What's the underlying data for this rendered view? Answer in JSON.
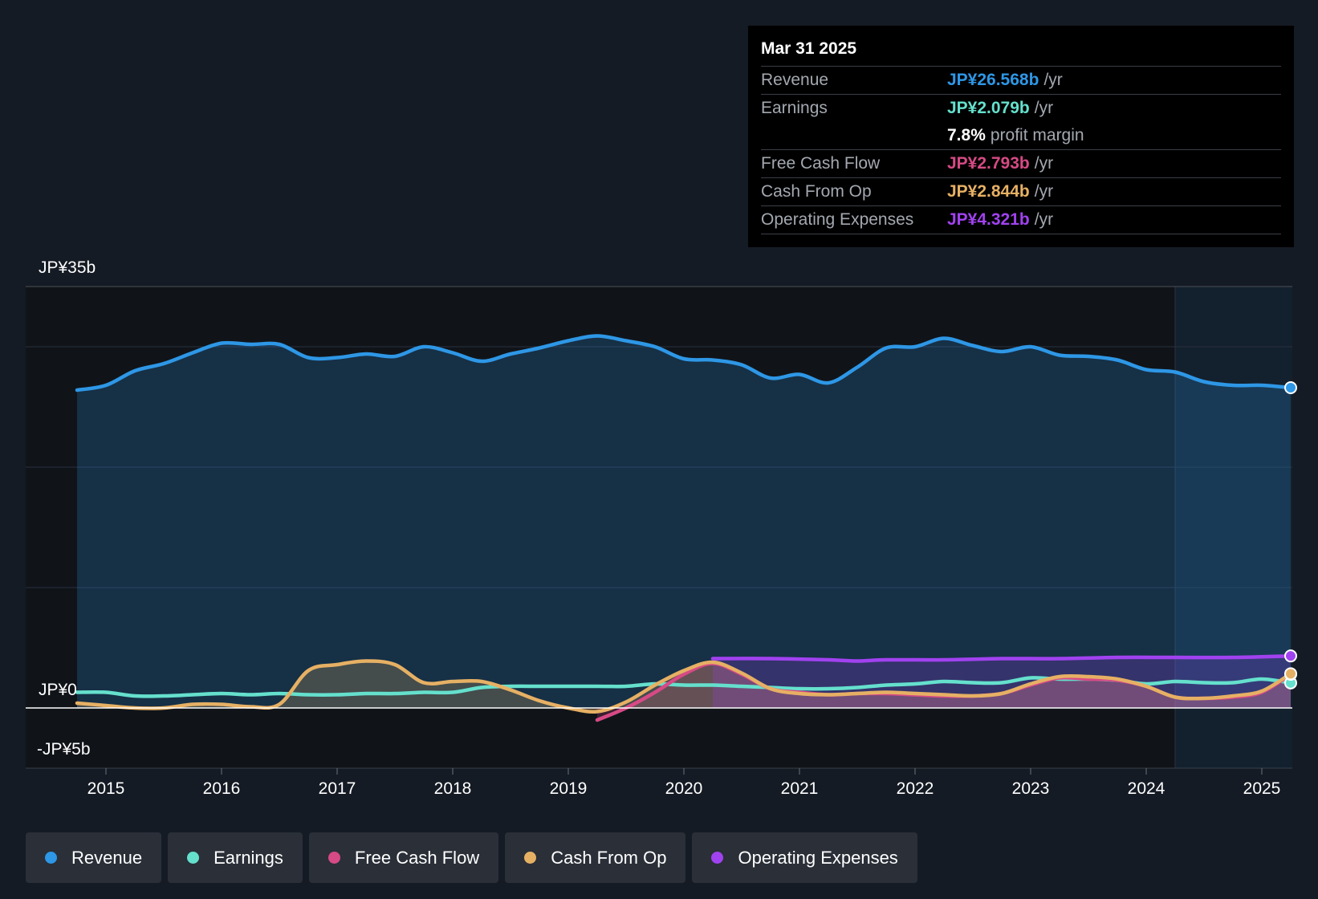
{
  "chart_data": {
    "type": "area",
    "title": "",
    "currency": "JP¥",
    "y_tick_labels": {
      "top": "JP¥35b",
      "zero": "JP¥0",
      "bottom": "-JP¥5b"
    },
    "ylim": [
      -5,
      35
    ],
    "xlim": [
      2014.7,
      2025.25
    ],
    "x_ticks": [
      2015,
      2016,
      2017,
      2018,
      2019,
      2020,
      2021,
      2022,
      2023,
      2024,
      2025
    ],
    "x_tick_labels": [
      "2015",
      "2016",
      "2017",
      "2018",
      "2019",
      "2020",
      "2021",
      "2022",
      "2023",
      "2024",
      "2025"
    ],
    "forecast_start": 2024.25,
    "series": [
      {
        "name": "Revenue",
        "color": "#2e97e6",
        "fill": true,
        "points": [
          [
            2014.75,
            26.4
          ],
          [
            2015.0,
            26.8
          ],
          [
            2015.25,
            28.0
          ],
          [
            2015.5,
            28.6
          ],
          [
            2015.75,
            29.5
          ],
          [
            2016.0,
            30.3
          ],
          [
            2016.25,
            30.2
          ],
          [
            2016.5,
            30.2
          ],
          [
            2016.75,
            29.1
          ],
          [
            2017.0,
            29.1
          ],
          [
            2017.25,
            29.4
          ],
          [
            2017.5,
            29.2
          ],
          [
            2017.75,
            30.0
          ],
          [
            2018.0,
            29.5
          ],
          [
            2018.25,
            28.8
          ],
          [
            2018.5,
            29.4
          ],
          [
            2018.75,
            29.9
          ],
          [
            2019.0,
            30.5
          ],
          [
            2019.25,
            30.9
          ],
          [
            2019.5,
            30.5
          ],
          [
            2019.75,
            30.0
          ],
          [
            2020.0,
            29.0
          ],
          [
            2020.25,
            28.9
          ],
          [
            2020.5,
            28.5
          ],
          [
            2020.75,
            27.4
          ],
          [
            2021.0,
            27.7
          ],
          [
            2021.25,
            27.0
          ],
          [
            2021.5,
            28.3
          ],
          [
            2021.75,
            29.9
          ],
          [
            2022.0,
            30.0
          ],
          [
            2022.25,
            30.7
          ],
          [
            2022.5,
            30.1
          ],
          [
            2022.75,
            29.6
          ],
          [
            2023.0,
            30.0
          ],
          [
            2023.25,
            29.3
          ],
          [
            2023.5,
            29.2
          ],
          [
            2023.75,
            28.9
          ],
          [
            2024.0,
            28.1
          ],
          [
            2024.25,
            27.9
          ],
          [
            2024.5,
            27.1
          ],
          [
            2024.75,
            26.8
          ],
          [
            2025.0,
            26.8
          ],
          [
            2025.25,
            26.6
          ]
        ]
      },
      {
        "name": "Earnings",
        "color": "#65e0cd",
        "fill": false,
        "points": [
          [
            2014.75,
            1.3
          ],
          [
            2015.0,
            1.3
          ],
          [
            2015.25,
            1.0
          ],
          [
            2015.5,
            1.0
          ],
          [
            2015.75,
            1.1
          ],
          [
            2016.0,
            1.2
          ],
          [
            2016.25,
            1.1
          ],
          [
            2016.5,
            1.2
          ],
          [
            2016.75,
            1.1
          ],
          [
            2017.0,
            1.1
          ],
          [
            2017.25,
            1.2
          ],
          [
            2017.5,
            1.2
          ],
          [
            2017.75,
            1.3
          ],
          [
            2018.0,
            1.3
          ],
          [
            2018.25,
            1.7
          ],
          [
            2018.5,
            1.8
          ],
          [
            2018.75,
            1.8
          ],
          [
            2019.0,
            1.8
          ],
          [
            2019.25,
            1.8
          ],
          [
            2019.5,
            1.8
          ],
          [
            2019.75,
            2.0
          ],
          [
            2020.0,
            1.9
          ],
          [
            2020.25,
            1.9
          ],
          [
            2020.5,
            1.8
          ],
          [
            2020.75,
            1.7
          ],
          [
            2021.0,
            1.6
          ],
          [
            2021.25,
            1.6
          ],
          [
            2021.5,
            1.7
          ],
          [
            2021.75,
            1.9
          ],
          [
            2022.0,
            2.0
          ],
          [
            2022.25,
            2.2
          ],
          [
            2022.5,
            2.1
          ],
          [
            2022.75,
            2.1
          ],
          [
            2023.0,
            2.5
          ],
          [
            2023.25,
            2.4
          ],
          [
            2023.5,
            2.4
          ],
          [
            2023.75,
            2.3
          ],
          [
            2024.0,
            2.0
          ],
          [
            2024.25,
            2.2
          ],
          [
            2024.5,
            2.1
          ],
          [
            2024.75,
            2.1
          ],
          [
            2025.0,
            2.4
          ],
          [
            2025.25,
            2.079
          ]
        ]
      },
      {
        "name": "Free Cash Flow",
        "color": "#d64a85",
        "fill": true,
        "points": [
          [
            2019.25,
            -1.0
          ],
          [
            2019.5,
            0.0
          ],
          [
            2019.75,
            1.3
          ],
          [
            2020.0,
            2.8
          ],
          [
            2020.25,
            3.7
          ],
          [
            2020.5,
            2.8
          ],
          [
            2020.75,
            1.6
          ],
          [
            2021.0,
            1.3
          ],
          [
            2021.25,
            1.1
          ],
          [
            2021.5,
            1.2
          ],
          [
            2021.75,
            1.2
          ],
          [
            2022.0,
            1.1
          ],
          [
            2022.25,
            1.0
          ],
          [
            2022.5,
            1.0
          ],
          [
            2022.75,
            1.2
          ],
          [
            2023.0,
            1.9
          ],
          [
            2023.25,
            2.5
          ],
          [
            2023.5,
            2.4
          ],
          [
            2023.75,
            2.3
          ],
          [
            2024.0,
            1.8
          ],
          [
            2024.25,
            0.9
          ],
          [
            2024.5,
            0.8
          ],
          [
            2024.75,
            0.9
          ],
          [
            2025.0,
            1.3
          ],
          [
            2025.25,
            2.793
          ]
        ]
      },
      {
        "name": "Cash From Op",
        "color": "#e6b064",
        "fill": true,
        "points": [
          [
            2014.75,
            0.4
          ],
          [
            2015.0,
            0.2
          ],
          [
            2015.25,
            0.0
          ],
          [
            2015.5,
            0.0
          ],
          [
            2015.75,
            0.3
          ],
          [
            2016.0,
            0.3
          ],
          [
            2016.25,
            0.1
          ],
          [
            2016.5,
            0.3
          ],
          [
            2016.75,
            3.1
          ],
          [
            2017.0,
            3.6
          ],
          [
            2017.25,
            3.9
          ],
          [
            2017.5,
            3.6
          ],
          [
            2017.75,
            2.1
          ],
          [
            2018.0,
            2.2
          ],
          [
            2018.25,
            2.2
          ],
          [
            2018.5,
            1.5
          ],
          [
            2018.75,
            0.6
          ],
          [
            2019.0,
            0.0
          ],
          [
            2019.25,
            -0.3
          ],
          [
            2019.5,
            0.5
          ],
          [
            2019.75,
            1.9
          ],
          [
            2020.0,
            3.1
          ],
          [
            2020.25,
            3.8
          ],
          [
            2020.5,
            2.9
          ],
          [
            2020.75,
            1.6
          ],
          [
            2021.0,
            1.2
          ],
          [
            2021.25,
            1.1
          ],
          [
            2021.5,
            1.2
          ],
          [
            2021.75,
            1.3
          ],
          [
            2022.0,
            1.2
          ],
          [
            2022.25,
            1.1
          ],
          [
            2022.5,
            1.0
          ],
          [
            2022.75,
            1.2
          ],
          [
            2023.0,
            2.0
          ],
          [
            2023.25,
            2.6
          ],
          [
            2023.5,
            2.6
          ],
          [
            2023.75,
            2.4
          ],
          [
            2024.0,
            1.8
          ],
          [
            2024.25,
            0.9
          ],
          [
            2024.5,
            0.8
          ],
          [
            2024.75,
            1.0
          ],
          [
            2025.0,
            1.4
          ],
          [
            2025.25,
            2.844
          ]
        ]
      },
      {
        "name": "Operating Expenses",
        "color": "#a142f0",
        "fill": true,
        "points": [
          [
            2020.25,
            4.1
          ],
          [
            2020.75,
            4.1
          ],
          [
            2021.25,
            4.0
          ],
          [
            2021.5,
            3.9
          ],
          [
            2021.75,
            4.0
          ],
          [
            2022.25,
            4.0
          ],
          [
            2022.75,
            4.1
          ],
          [
            2023.25,
            4.1
          ],
          [
            2023.75,
            4.2
          ],
          [
            2024.25,
            4.2
          ],
          [
            2024.75,
            4.2
          ],
          [
            2025.25,
            4.321
          ]
        ]
      }
    ]
  },
  "tooltip": {
    "date": "Mar 31 2025",
    "rows": [
      {
        "label": "Revenue",
        "value": "JP¥26.568b",
        "unit": "/yr",
        "color": "#2e97e6"
      },
      {
        "label": "Earnings",
        "value": "JP¥2.079b",
        "unit": "/yr",
        "color": "#65e0cd"
      },
      {
        "label": "",
        "value": "7.8%",
        "unit": "profit margin",
        "color": "#ffffff"
      },
      {
        "label": "Free Cash Flow",
        "value": "JP¥2.793b",
        "unit": "/yr",
        "color": "#d64a85"
      },
      {
        "label": "Cash From Op",
        "value": "JP¥2.844b",
        "unit": "/yr",
        "color": "#e6b064"
      },
      {
        "label": "Operating Expenses",
        "value": "JP¥4.321b",
        "unit": "/yr",
        "color": "#a142f0"
      }
    ]
  },
  "legend": [
    {
      "label": "Revenue",
      "color": "#2e97e6"
    },
    {
      "label": "Earnings",
      "color": "#65e0cd"
    },
    {
      "label": "Free Cash Flow",
      "color": "#d64a85"
    },
    {
      "label": "Cash From Op",
      "color": "#e6b064"
    },
    {
      "label": "Operating Expenses",
      "color": "#a142f0"
    }
  ]
}
